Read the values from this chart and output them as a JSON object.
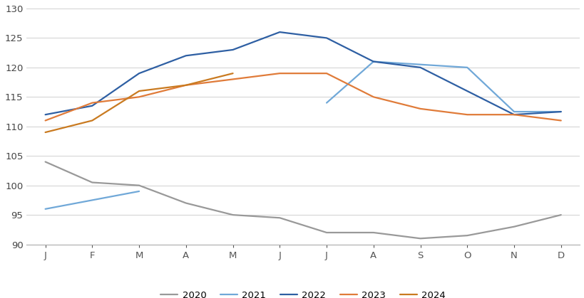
{
  "months": [
    "J",
    "F",
    "M",
    "A",
    "M",
    "J",
    "J",
    "A",
    "S",
    "O",
    "N",
    "D"
  ],
  "colors": {
    "2020": "#999999",
    "2021": "#70a8d8",
    "2022": "#2e5fa3",
    "2023": "#e07b39",
    "2024": "#c97a20"
  },
  "series": {
    "2020": [
      104,
      100.5,
      100,
      97,
      95,
      94.5,
      92,
      92,
      91,
      91.5,
      93,
      95
    ],
    "2021": [
      96,
      97.5,
      99,
      null,
      null,
      null,
      114,
      121,
      120.5,
      120,
      112.5,
      112.5
    ],
    "2022": [
      112,
      113.5,
      119,
      122,
      123,
      126,
      125,
      121,
      120,
      116,
      112,
      112.5
    ],
    "2023": [
      111,
      114,
      115,
      117,
      118,
      119,
      119,
      115,
      113,
      112,
      112,
      111
    ],
    "2024": [
      109,
      111,
      116,
      117,
      119,
      null,
      null,
      null,
      null,
      null,
      null,
      null
    ]
  },
  "ylim": [
    90,
    130
  ],
  "yticks": [
    90,
    95,
    100,
    105,
    110,
    115,
    120,
    125,
    130
  ],
  "background_color": "#ffffff",
  "grid_color": "#d0d0d0",
  "legend_order": [
    "2020",
    "2021",
    "2022",
    "2023",
    "2024"
  ]
}
